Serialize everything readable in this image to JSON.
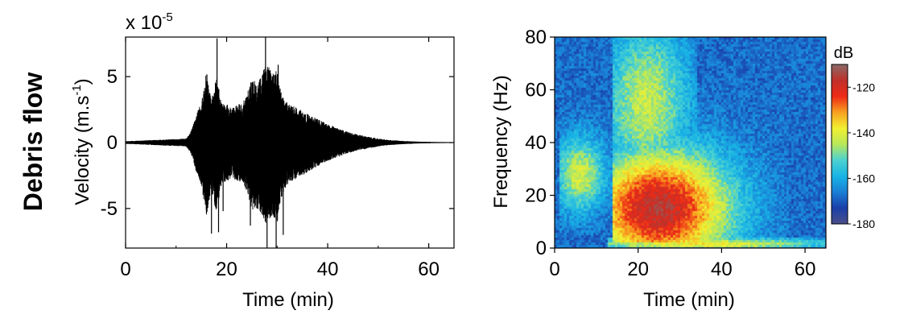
{
  "figure": {
    "row_label": "Debris flow"
  },
  "chart_data": [
    {
      "type": "line",
      "title": "",
      "xlabel": "Time (min)",
      "ylabel": "Velocity (m.s",
      "ylabel_sup": "-1",
      "ylabel_close": ")",
      "exponent_label": "x 10",
      "exponent_sup": "-5",
      "xlim": [
        0,
        65
      ],
      "ylim": [
        -8,
        8
      ],
      "xticks": [
        0,
        20,
        40,
        60
      ],
      "yticks": [
        -5,
        0,
        5
      ],
      "grid": false,
      "color": "#000000",
      "envelope": {
        "time": [
          0,
          6,
          12,
          13,
          14,
          15,
          16,
          17,
          18,
          19,
          20,
          21,
          22,
          23,
          24,
          25,
          26,
          27,
          28,
          29,
          30,
          31,
          32,
          34,
          36,
          38,
          40,
          42,
          44,
          46,
          48,
          50,
          52,
          55,
          58,
          62,
          65
        ],
        "upper": [
          0.1,
          0.2,
          0.3,
          0.9,
          2.2,
          3.0,
          5.4,
          3.2,
          5.3,
          3.0,
          2.9,
          2.6,
          2.9,
          3.0,
          3.6,
          5.0,
          4.4,
          5.3,
          6.1,
          5.5,
          5.4,
          3.5,
          3.0,
          2.6,
          2.2,
          1.8,
          1.4,
          1.1,
          0.8,
          0.6,
          0.45,
          0.3,
          0.2,
          0.12,
          0.07,
          0.04,
          0.03
        ],
        "lower": [
          -0.1,
          -0.2,
          -0.3,
          -0.9,
          -2.2,
          -3.2,
          -5.6,
          -3.6,
          -5.4,
          -3.1,
          -3.0,
          -2.7,
          -2.9,
          -3.0,
          -3.7,
          -5.2,
          -5.0,
          -5.6,
          -6.3,
          -5.7,
          -6.2,
          -4.0,
          -3.2,
          -2.7,
          -2.3,
          -1.8,
          -1.4,
          -1.1,
          -0.8,
          -0.6,
          -0.45,
          -0.3,
          -0.2,
          -0.12,
          -0.07,
          -0.04,
          -0.03
        ]
      },
      "spikes": [
        {
          "time": 17.0,
          "value": -6.9
        },
        {
          "time": 18.1,
          "value": 7.9
        },
        {
          "time": 18.4,
          "value": -6.8
        },
        {
          "time": 19.3,
          "value": -5.2
        },
        {
          "time": 24.7,
          "value": -6.3
        },
        {
          "time": 27.7,
          "value": 8.0
        },
        {
          "time": 28.0,
          "value": -8.0
        },
        {
          "time": 29.8,
          "value": -8.0
        },
        {
          "time": 30.2,
          "value": 5.9
        },
        {
          "time": 31.2,
          "value": -7.0
        }
      ]
    },
    {
      "type": "heatmap",
      "title": "",
      "xlabel": "Time (min)",
      "ylabel": "Frequency (Hz)",
      "xlim": [
        0,
        65
      ],
      "ylim": [
        0,
        80
      ],
      "xticks": [
        0,
        20,
        40,
        60
      ],
      "yticks": [
        0,
        20,
        40,
        60,
        80
      ],
      "colorbar_label": "dB",
      "colorbar_range": [
        -180,
        -110
      ],
      "colorbar_ticks": [
        -120,
        -140,
        -160,
        -180
      ],
      "colormap": [
        "#4b4e8a",
        "#1a3fa8",
        "#1a7fd6",
        "#18b4e6",
        "#4cd2d0",
        "#b8e85a",
        "#f2f030",
        "#f8a020",
        "#ee2a16",
        "#c0302a",
        "#8a6a66"
      ],
      "background_db": -168,
      "sources": [
        {
          "t0": 14,
          "t1": 56,
          "f0": 2,
          "f1": 78,
          "tc": 25,
          "fc": 15,
          "dt": 17,
          "df": 22,
          "peak": 52
        },
        {
          "t0": 14,
          "t1": 34,
          "f0": 0,
          "f1": 80,
          "tc": 22,
          "fc": 55,
          "dt": 10,
          "df": 30,
          "peak": 25
        },
        {
          "t0": 1,
          "t1": 14,
          "f0": 5,
          "f1": 55,
          "tc": 6,
          "fc": 28,
          "dt": 6,
          "df": 14,
          "peak": 26
        },
        {
          "t0": 13,
          "t1": 65,
          "f0": 0,
          "f1": 4,
          "tc": 35,
          "fc": 1.5,
          "dt": 30,
          "df": 2.5,
          "peak": 30
        }
      ]
    }
  ]
}
